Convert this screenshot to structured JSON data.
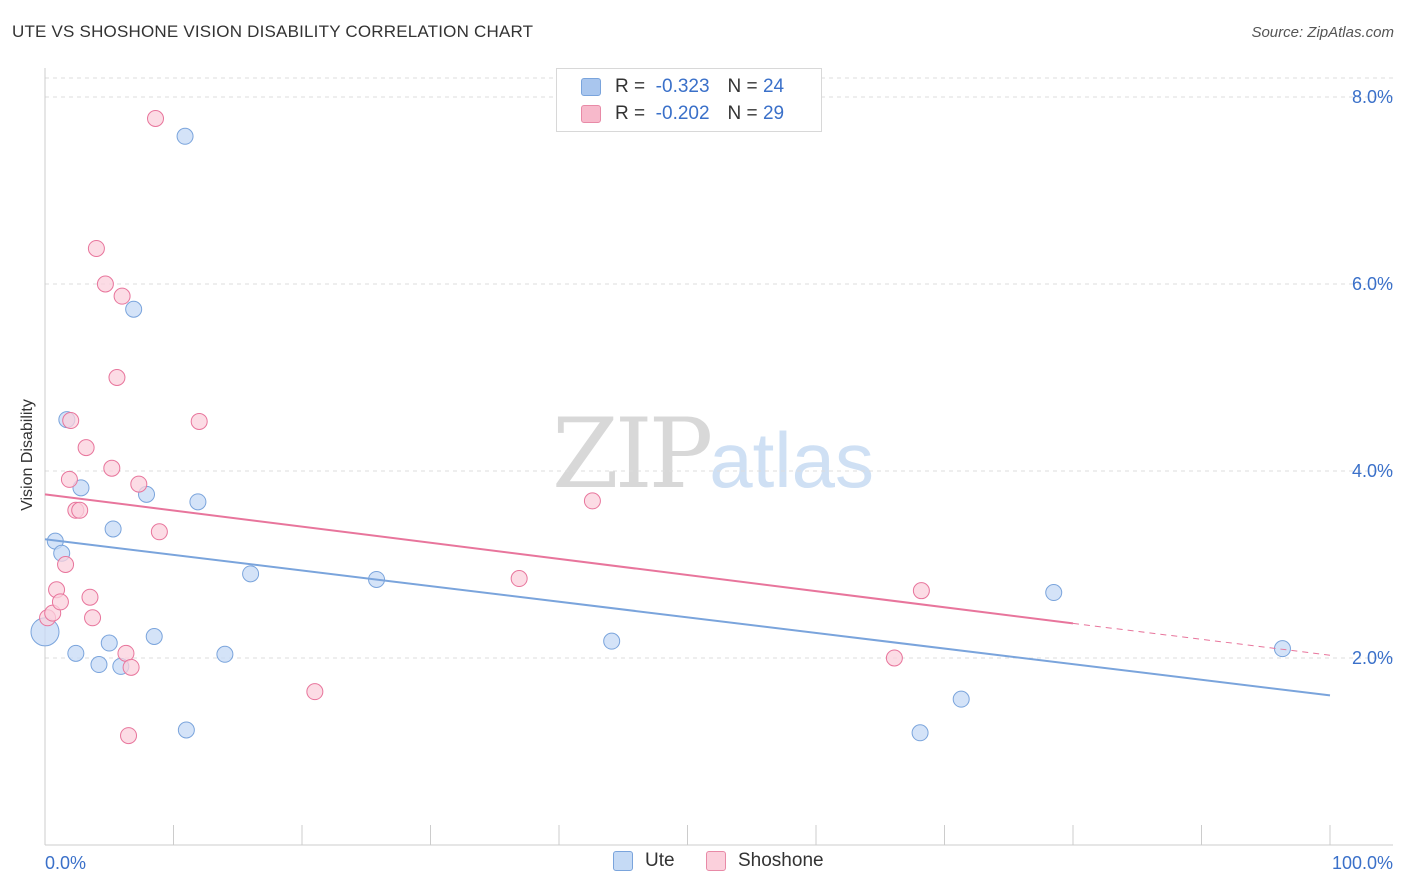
{
  "header": {
    "title": "UTE VS SHOSHONE VISION DISABILITY CORRELATION CHART",
    "source": "Source: ZipAtlas.com"
  },
  "watermark": {
    "zip": "ZIP",
    "atlas": "atlas"
  },
  "stats": [
    {
      "r_label": "R =",
      "r_value": "-0.323",
      "n_label": "N =",
      "n_value": "24",
      "color": "#a9c6ee",
      "border": "#7aa4dc"
    },
    {
      "r_label": "R =",
      "r_value": "-0.202",
      "n_label": "N =",
      "n_value": "29",
      "color": "#f7b9cb",
      "border": "#e88aa7"
    }
  ],
  "legend": [
    {
      "label": "Ute",
      "color": "#c5daf5",
      "border": "#7aa4dc"
    },
    {
      "label": "Shoshone",
      "color": "#fbd0dc",
      "border": "#e88aa7"
    }
  ],
  "chart_data": {
    "type": "scatter",
    "title": "UTE VS SHOSHONE VISION DISABILITY CORRELATION CHART",
    "xlabel": "",
    "ylabel": "Vision Disability",
    "xlim": [
      0,
      100
    ],
    "ylim": [
      0,
      8.2
    ],
    "x_tick_labels": [
      "0.0%",
      "100.0%"
    ],
    "y_ticks": [
      2.0,
      4.0,
      6.0,
      8.0
    ],
    "y_tick_labels": [
      "2.0%",
      "4.0%",
      "6.0%",
      "8.0%"
    ],
    "series": [
      {
        "name": "Ute",
        "color": "#7aa4dc",
        "fill": "#c5daf5",
        "points": [
          [
            0.0,
            2.28
          ],
          [
            0.8,
            3.25
          ],
          [
            1.3,
            3.12
          ],
          [
            1.7,
            4.55
          ],
          [
            2.4,
            2.05
          ],
          [
            2.8,
            3.82
          ],
          [
            4.2,
            1.93
          ],
          [
            5.0,
            2.16
          ],
          [
            5.3,
            3.38
          ],
          [
            5.9,
            1.91
          ],
          [
            6.9,
            5.73
          ],
          [
            7.9,
            3.75
          ],
          [
            8.5,
            2.23
          ],
          [
            10.9,
            7.58
          ],
          [
            11.0,
            1.23
          ],
          [
            11.9,
            3.67
          ],
          [
            14.0,
            2.04
          ],
          [
            16.0,
            2.9
          ],
          [
            25.8,
            2.84
          ],
          [
            44.1,
            2.18
          ],
          [
            68.1,
            1.2
          ],
          [
            71.3,
            1.56
          ],
          [
            78.5,
            2.7
          ],
          [
            96.3,
            2.1
          ]
        ],
        "trend": {
          "x": [
            0,
            100
          ],
          "y": [
            3.27,
            1.6
          ]
        }
      },
      {
        "name": "Shoshone",
        "color": "#e8759c",
        "fill": "#fbd0dc",
        "points": [
          [
            0.2,
            2.43
          ],
          [
            0.6,
            2.48
          ],
          [
            0.9,
            2.73
          ],
          [
            1.2,
            2.6
          ],
          [
            1.6,
            3.0
          ],
          [
            1.9,
            3.91
          ],
          [
            2.0,
            4.54
          ],
          [
            2.4,
            3.58
          ],
          [
            2.7,
            3.58
          ],
          [
            3.2,
            4.25
          ],
          [
            3.5,
            2.65
          ],
          [
            3.7,
            2.43
          ],
          [
            4.0,
            6.38
          ],
          [
            4.7,
            6.0
          ],
          [
            5.2,
            4.03
          ],
          [
            5.6,
            5.0
          ],
          [
            6.0,
            5.87
          ],
          [
            6.3,
            2.05
          ],
          [
            6.5,
            1.17
          ],
          [
            6.7,
            1.9
          ],
          [
            7.3,
            3.86
          ],
          [
            8.6,
            7.77
          ],
          [
            8.9,
            3.35
          ],
          [
            12.0,
            4.53
          ],
          [
            21.0,
            1.64
          ],
          [
            36.9,
            2.85
          ],
          [
            42.6,
            3.68
          ],
          [
            66.1,
            2.0
          ],
          [
            68.2,
            2.72
          ]
        ],
        "trend": {
          "x": [
            0,
            80
          ],
          "y": [
            3.75,
            2.37
          ]
        },
        "trend_dashed": {
          "x": [
            80,
            100
          ],
          "y": [
            2.37,
            2.03
          ]
        }
      }
    ]
  }
}
